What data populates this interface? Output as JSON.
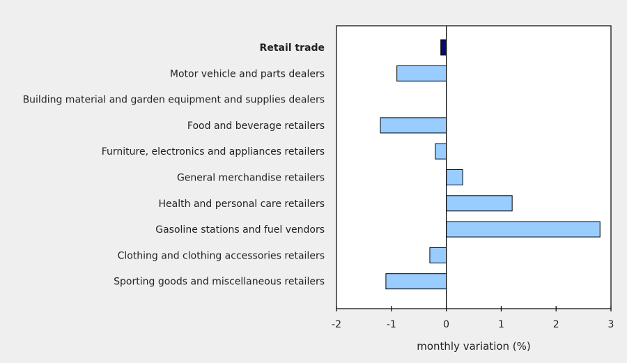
{
  "chart_data": {
    "type": "bar",
    "orientation": "horizontal",
    "xlabel": "monthly variation (%)",
    "xlim": [
      -2,
      3
    ],
    "xticks": [
      "-2",
      "-1",
      "0",
      "1",
      "2",
      "3"
    ],
    "categories": [
      "Retail trade",
      "Motor vehicle and parts dealers",
      "Building material and garden equipment and supplies dealers",
      "Food and beverage retailers",
      "Furniture, electronics and appliances retailers",
      "General merchandise retailers",
      "Health and personal care retailers",
      "Gasoline stations and fuel vendors",
      "Clothing and clothing accessories retailers",
      "Sporting goods and miscellaneous retailers"
    ],
    "values": [
      -0.1,
      -0.9,
      0.0,
      -1.2,
      -0.2,
      0.3,
      1.2,
      2.8,
      -0.3,
      -1.1
    ],
    "highlight_index": 0,
    "colors": {
      "highlight": "#0a0a6e",
      "bar": "#99ccff",
      "bar_stroke": "#000000",
      "frame": "#000000",
      "plot_bg": "#ffffff",
      "page_bg": "#efefef"
    },
    "grid": false
  }
}
